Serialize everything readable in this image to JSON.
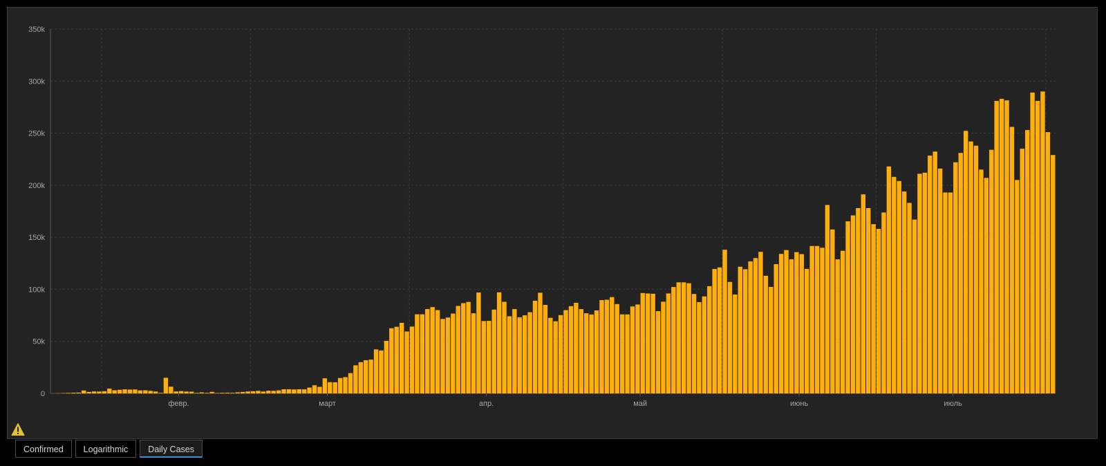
{
  "colors": {
    "bar": "#FFAE0A",
    "background": "#232323",
    "grid": "#3c3c3c",
    "axis": "#5a5a5a",
    "warning": "#E6C229"
  },
  "warning_icon": "warning-triangle-icon",
  "tabs": [
    {
      "label": "Confirmed",
      "active": false
    },
    {
      "label": "Logarithmic",
      "active": false
    },
    {
      "label": "Daily Cases",
      "active": true
    }
  ],
  "chart_data": {
    "type": "bar",
    "title": "",
    "xlabel": "",
    "ylabel": "",
    "ylim": [
      0,
      350000
    ],
    "yticks": [
      0,
      50000,
      100000,
      150000,
      200000,
      250000,
      300000,
      350000
    ],
    "ytick_labels": [
      "0",
      "50k",
      "100k",
      "150k",
      "200k",
      "250k",
      "300k",
      "350k"
    ],
    "x_start": "2020-01-22",
    "xticks": [
      {
        "label": "февр.",
        "date": "2020-02-01"
      },
      {
        "label": "март",
        "date": "2020-03-01"
      },
      {
        "label": "апр.",
        "date": "2020-04-01"
      },
      {
        "label": "май",
        "date": "2020-05-01"
      },
      {
        "label": "июнь",
        "date": "2020-06-01"
      },
      {
        "label": "июль",
        "date": "2020-07-01"
      }
    ],
    "grid": true,
    "values": [
      0,
      100,
      300,
      500,
      700,
      800,
      2800,
      1400,
      1900,
      1800,
      2100,
      4600,
      3000,
      3500,
      3900,
      3700,
      3800,
      2900,
      3000,
      2500,
      1800,
      500,
      15000,
      6500,
      1900,
      2200,
      1800,
      1700,
      500,
      1000,
      500,
      1500,
      400,
      600,
      700,
      600,
      1000,
      1400,
      1900,
      2100,
      2500,
      1800,
      2600,
      2500,
      2900,
      4000,
      4000,
      3800,
      4000,
      3900,
      5600,
      7800,
      6300,
      14500,
      10800,
      10700,
      14800,
      15600,
      19500,
      27000,
      30000,
      31900,
      32500,
      42300,
      41200,
      50500,
      62600,
      64000,
      67800,
      59500,
      64200,
      76000,
      76000,
      81000,
      82900,
      80000,
      71500,
      72900,
      76700,
      84000,
      86700,
      87900,
      77000,
      96900,
      69500,
      69700,
      80500,
      97100,
      88000,
      74100,
      81000,
      73100,
      75000,
      78000,
      89000,
      96700,
      85000,
      72600,
      69300,
      75200,
      80000,
      83800,
      87000,
      81000,
      77000,
      75800,
      79700,
      89600,
      90000,
      92500,
      85800,
      75900,
      75900,
      83500,
      85400,
      96400,
      96000,
      95700,
      79000,
      88100,
      96000,
      102200,
      106700,
      106700,
      105800,
      95500,
      87700,
      93200,
      103000,
      119500,
      121000,
      138000,
      107100,
      95000,
      121700,
      119300,
      126800,
      130000,
      136000,
      113000,
      102300,
      124200,
      134000,
      137700,
      128800,
      135700,
      133800,
      119600,
      141600,
      141600,
      139900,
      181000,
      157500,
      128800,
      137000,
      165300,
      171000,
      178000,
      191200,
      178000,
      162600,
      158000,
      173800,
      218000,
      208000,
      204000,
      194000,
      183000,
      167000,
      211000,
      212000,
      228400,
      232300,
      216000,
      193000,
      193000,
      222000,
      231000,
      252200,
      242000,
      238000,
      215000,
      207000,
      234000,
      281000,
      283000,
      281500,
      256000,
      205000,
      235000,
      253000,
      289000,
      281000,
      290000,
      251000,
      229000
    ]
  }
}
